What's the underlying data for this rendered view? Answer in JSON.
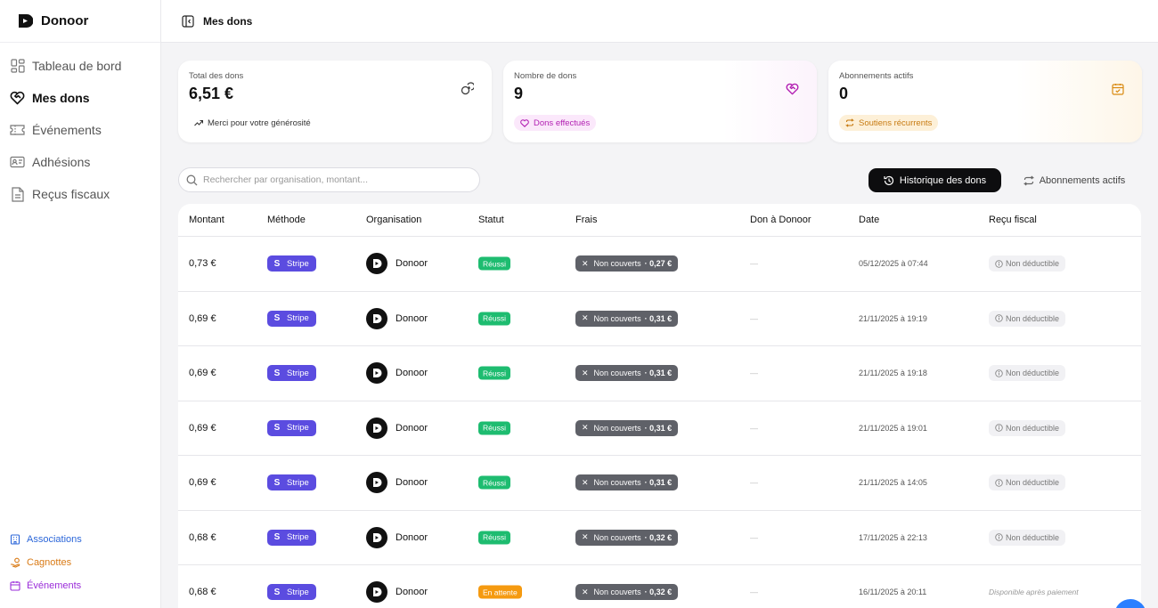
{
  "brand": {
    "name": "Donoor"
  },
  "sidebar": {
    "items": [
      {
        "label": "Tableau de bord",
        "icon": "dashboard-icon",
        "active": false
      },
      {
        "label": "Mes dons",
        "icon": "heart-handshake-icon",
        "active": true
      },
      {
        "label": "Événements",
        "icon": "ticket-icon",
        "active": false
      },
      {
        "label": "Adhésions",
        "icon": "id-card-icon",
        "active": false
      },
      {
        "label": "Reçus fiscaux",
        "icon": "document-icon",
        "active": false
      }
    ],
    "bottom_links": [
      {
        "label": "Associations",
        "icon": "building-icon",
        "color": "#2b66d9"
      },
      {
        "label": "Cagnottes",
        "icon": "hand-coins-icon",
        "color": "#d97a15"
      },
      {
        "label": "Événements",
        "icon": "calendar-icon",
        "color": "#9a2bd9"
      }
    ]
  },
  "header": {
    "title": "Mes dons",
    "collapse_icon": "panel-left-icon"
  },
  "stats": {
    "total": {
      "label": "Total des dons",
      "value": "6,51 €",
      "pill": "Merci pour votre générosité",
      "icon": "coins-icon"
    },
    "count": {
      "label": "Nombre de dons",
      "value": "9",
      "pill": "Dons effectués",
      "icon": "heart-handshake-icon",
      "accent": "#b21fb2"
    },
    "subs": {
      "label": "Abonnements actifs",
      "value": "0",
      "pill": "Soutiens récurrents",
      "icon": "calendar-check-icon",
      "accent": "#c77a10"
    }
  },
  "search": {
    "placeholder": "Rechercher par organisation, montant..."
  },
  "tabs": {
    "history": "Historique des dons",
    "subscriptions": "Abonnements actifs"
  },
  "table": {
    "headers": {
      "amount": "Montant",
      "method": "Méthode",
      "organisation": "Organisation",
      "status": "Statut",
      "fees": "Frais",
      "donation_to_donoor": "Don à Donoor",
      "date": "Date",
      "receipt": "Reçu fiscal"
    },
    "rows": [
      {
        "amount": "0,73 €",
        "method": "Stripe",
        "org": "Donoor",
        "status": "Réussi",
        "status_type": "ok",
        "fees_label": "Non couverts",
        "fees_amount": "· 0,27 €",
        "donoor": "—",
        "date": "05/12/2025 à 07:44",
        "receipt": "Non déductible"
      },
      {
        "amount": "0,69 €",
        "method": "Stripe",
        "org": "Donoor",
        "status": "Réussi",
        "status_type": "ok",
        "fees_label": "Non couverts",
        "fees_amount": "· 0,31 €",
        "donoor": "—",
        "date": "21/11/2025 à 19:19",
        "receipt": "Non déductible"
      },
      {
        "amount": "0,69 €",
        "method": "Stripe",
        "org": "Donoor",
        "status": "Réussi",
        "status_type": "ok",
        "fees_label": "Non couverts",
        "fees_amount": "· 0,31 €",
        "donoor": "—",
        "date": "21/11/2025 à 19:18",
        "receipt": "Non déductible"
      },
      {
        "amount": "0,69 €",
        "method": "Stripe",
        "org": "Donoor",
        "status": "Réussi",
        "status_type": "ok",
        "fees_label": "Non couverts",
        "fees_amount": "· 0,31 €",
        "donoor": "—",
        "date": "21/11/2025 à 19:01",
        "receipt": "Non déductible"
      },
      {
        "amount": "0,69 €",
        "method": "Stripe",
        "org": "Donoor",
        "status": "Réussi",
        "status_type": "ok",
        "fees_label": "Non couverts",
        "fees_amount": "· 0,31 €",
        "donoor": "—",
        "date": "21/11/2025 à 14:05",
        "receipt": "Non déductible"
      },
      {
        "amount": "0,68 €",
        "method": "Stripe",
        "org": "Donoor",
        "status": "Réussi",
        "status_type": "ok",
        "fees_label": "Non couverts",
        "fees_amount": "· 0,32 €",
        "donoor": "—",
        "date": "17/11/2025 à 22:13",
        "receipt": "Non déductible"
      },
      {
        "amount": "0,68 €",
        "method": "Stripe",
        "org": "Donoor",
        "status": "En attente",
        "status_type": "wait",
        "fees_label": "Non couverts",
        "fees_amount": "· 0,32 €",
        "donoor": "—",
        "date": "16/11/2025 à 20:11",
        "receipt": "Disponible après paiement",
        "receipt_pending": true
      }
    ]
  }
}
